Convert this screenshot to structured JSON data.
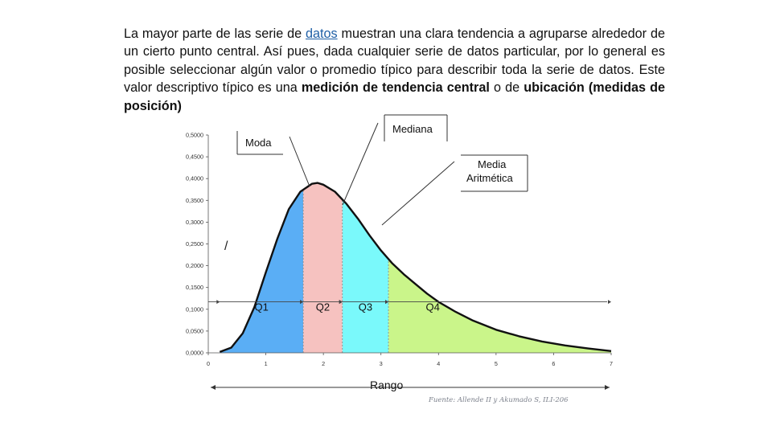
{
  "paragraph": {
    "p1": "La mayor parte de las serie de ",
    "link": "datos",
    "p2": " muestran una clara tendencia a agruparse alrededor de un cierto punto central. Así pues, dada cualquier serie de datos particular, por lo general es posible seleccionar algún valor o promedio típico para describir toda la serie de datos. Este valor descriptivo típico es una ",
    "b1": "medición de tendencia central",
    "p3": " o de ",
    "b2": "ubicación (medidas de posición)"
  },
  "chart_data": {
    "type": "area",
    "title": "",
    "xlabel": "Rango",
    "ylabel": "",
    "xlim": [
      0,
      7
    ],
    "ylim": [
      0,
      0.5
    ],
    "x_ticks": [
      "0",
      "1",
      "2",
      "3",
      "4",
      "5",
      "6",
      "7"
    ],
    "y_ticks": [
      "0,0000",
      "0,0500",
      "0,1000",
      "0,1500",
      "0,2000",
      "0,2500",
      "0,3000",
      "0,3500",
      "0,4000",
      "0,4500",
      "0,5000"
    ],
    "curve": {
      "x": [
        0.2,
        0.4,
        0.6,
        0.8,
        1.0,
        1.2,
        1.4,
        1.6,
        1.8,
        1.9,
        2.0,
        2.2,
        2.4,
        2.6,
        2.8,
        3.0,
        3.2,
        3.4,
        3.6,
        3.8,
        4.0,
        4.3,
        4.6,
        5.0,
        5.4,
        5.8,
        6.2,
        6.6,
        7.0
      ],
      "y": [
        0.002,
        0.012,
        0.045,
        0.105,
        0.185,
        0.262,
        0.33,
        0.37,
        0.388,
        0.39,
        0.386,
        0.37,
        0.342,
        0.308,
        0.27,
        0.235,
        0.205,
        0.18,
        0.158,
        0.136,
        0.117,
        0.094,
        0.074,
        0.053,
        0.038,
        0.026,
        0.017,
        0.01,
        0.004
      ]
    },
    "regions": [
      {
        "name": "Q1",
        "from": 0.2,
        "to": 1.65,
        "color": "#5aaef5"
      },
      {
        "name": "Q2",
        "from": 1.65,
        "to": 2.33,
        "color": "#f6c2c0"
      },
      {
        "name": "Q3",
        "from": 2.33,
        "to": 3.13,
        "color": "#7af9fb"
      },
      {
        "name": "Q4",
        "from": 3.13,
        "to": 7.0,
        "color": "#caf58a"
      }
    ],
    "annotations": [
      {
        "text": "Moda",
        "x": 1.9,
        "y": 0.39
      },
      {
        "text": "Mediana",
        "x": 2.33,
        "y": 0.33
      },
      {
        "text": "Media Aritmética",
        "x": 2.65,
        "y": 0.3
      }
    ],
    "grid": false,
    "source": "Fuente: Allende II y Akumado S, ILI-206"
  },
  "labels": {
    "moda": "Moda",
    "mediana": "Mediana",
    "media_l1": "Media",
    "media_l2": "Aritmética",
    "stray_mark": "/"
  },
  "colors": {
    "q1": "#5aaef5",
    "q2": "#f6c2c0",
    "q3": "#7af9fb",
    "q4": "#caf58a",
    "curve": "#111111",
    "link": "#1f5fa6"
  }
}
